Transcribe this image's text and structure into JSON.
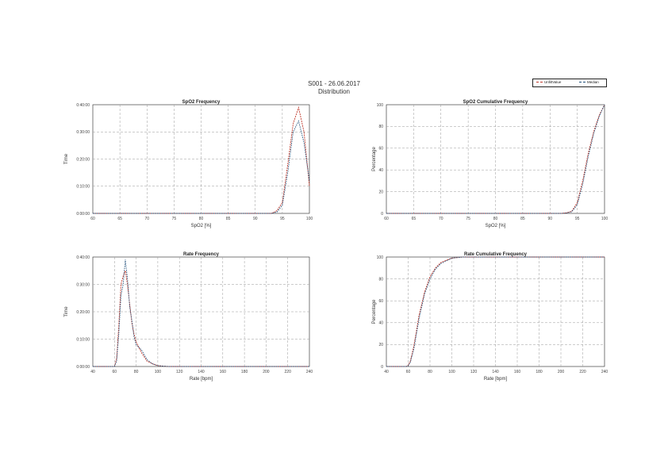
{
  "header": {
    "title": "S001 - 26.06.2017",
    "subtitle": "Distribution"
  },
  "legend": {
    "items": [
      {
        "label": "UnfiltValue",
        "color": "#c0392b"
      },
      {
        "label": "Median",
        "color": "#1f4e79"
      }
    ]
  },
  "colors": {
    "series_a": "#c0392b",
    "series_b": "#1f4e79",
    "grid": "#9a9a9a",
    "axis": "#222222"
  },
  "chart_data": [
    {
      "id": "spo2-freq",
      "type": "line",
      "title": "SpO2 Frequency",
      "xlabel": "SpO2 [%]",
      "ylabel": "Time",
      "xlim": [
        60,
        100
      ],
      "ylim": [
        0,
        4
      ],
      "xticks": [
        60,
        65,
        70,
        75,
        80,
        85,
        90,
        95,
        100
      ],
      "yticks": [
        0,
        1,
        2,
        3,
        4
      ],
      "yticklabels": [
        "0:00:00",
        "0:10:00",
        "0:20:00",
        "0:30:00",
        "0:40:00"
      ],
      "series": [
        {
          "x": [
            60,
            88,
            93,
            94,
            95,
            96,
            97,
            98,
            99,
            100
          ],
          "y": [
            0,
            0,
            0,
            0.1,
            0.4,
            1.8,
            3.3,
            3.9,
            3.0,
            1.0
          ]
        },
        {
          "x": [
            60,
            88,
            93,
            94,
            95,
            96,
            97,
            98,
            99,
            100
          ],
          "y": [
            0,
            0,
            0,
            0.05,
            0.3,
            1.5,
            3.0,
            3.4,
            2.6,
            1.2
          ]
        }
      ]
    },
    {
      "id": "spo2-cum",
      "type": "line",
      "title": "SpO2 Cumulative Frequency",
      "xlabel": "SpO2 [%]",
      "ylabel": "Percentage",
      "xlim": [
        60,
        100
      ],
      "ylim": [
        0,
        100
      ],
      "xticks": [
        60,
        65,
        70,
        75,
        80,
        85,
        90,
        95,
        100
      ],
      "yticks": [
        0,
        20,
        40,
        60,
        80,
        100
      ],
      "series": [
        {
          "x": [
            60,
            92,
            93,
            94,
            95,
            96,
            97,
            98,
            99,
            100
          ],
          "y": [
            0,
            0,
            0.5,
            2,
            10,
            30,
            55,
            75,
            90,
            100
          ]
        },
        {
          "x": [
            60,
            92,
            93,
            94,
            95,
            96,
            97,
            98,
            99,
            100
          ],
          "y": [
            0,
            0,
            0.3,
            1.5,
            8,
            27,
            52,
            73,
            89,
            100
          ]
        }
      ]
    },
    {
      "id": "rate-freq",
      "type": "line",
      "title": "Rate Frequency",
      "xlabel": "Rate [bpm]",
      "ylabel": "Time",
      "xlim": [
        40,
        240
      ],
      "ylim": [
        0,
        4
      ],
      "xticks": [
        40,
        60,
        80,
        100,
        120,
        140,
        160,
        180,
        200,
        220,
        240
      ],
      "yticks": [
        0,
        1,
        2,
        3,
        4
      ],
      "yticklabels": [
        "0:00:00",
        "0:10:00",
        "0:20:00",
        "0:30:00",
        "0:40:00"
      ],
      "series": [
        {
          "x": [
            40,
            60,
            62,
            64,
            66,
            68,
            70,
            72,
            74,
            76,
            78,
            80,
            85,
            90,
            95,
            100,
            110,
            120,
            240
          ],
          "y": [
            0,
            0,
            0.3,
            1.5,
            3.0,
            3.3,
            3.5,
            3.0,
            2.3,
            1.6,
            1.2,
            0.9,
            0.5,
            0.2,
            0.1,
            0.03,
            0,
            0,
            0
          ]
        },
        {
          "x": [
            40,
            60,
            62,
            64,
            66,
            68,
            70,
            72,
            74,
            76,
            78,
            80,
            85,
            90,
            95,
            100,
            110,
            120,
            240
          ],
          "y": [
            0,
            0,
            0.2,
            1.2,
            2.6,
            3.0,
            3.9,
            3.2,
            2.2,
            1.7,
            1.1,
            0.8,
            0.6,
            0.25,
            0.1,
            0.03,
            0,
            0,
            0
          ]
        }
      ]
    },
    {
      "id": "rate-cum",
      "type": "line",
      "title": "Rate Cumulative Frequency",
      "xlabel": "Rate [bpm]",
      "ylabel": "Percentage",
      "xlim": [
        40,
        240
      ],
      "ylim": [
        0,
        100
      ],
      "xticks": [
        40,
        60,
        80,
        100,
        120,
        140,
        160,
        180,
        200,
        220,
        240
      ],
      "yticks": [
        0,
        20,
        40,
        60,
        80,
        100
      ],
      "series": [
        {
          "x": [
            40,
            58,
            60,
            62,
            65,
            68,
            70,
            75,
            80,
            85,
            90,
            100,
            110,
            240
          ],
          "y": [
            0,
            0,
            1,
            5,
            18,
            35,
            47,
            68,
            82,
            90,
            95,
            99,
            100,
            100
          ]
        },
        {
          "x": [
            40,
            58,
            60,
            62,
            65,
            68,
            70,
            75,
            80,
            85,
            90,
            100,
            110,
            240
          ],
          "y": [
            0,
            0,
            0.5,
            4,
            15,
            32,
            44,
            66,
            80,
            89,
            94,
            99,
            100,
            100
          ]
        }
      ]
    }
  ]
}
